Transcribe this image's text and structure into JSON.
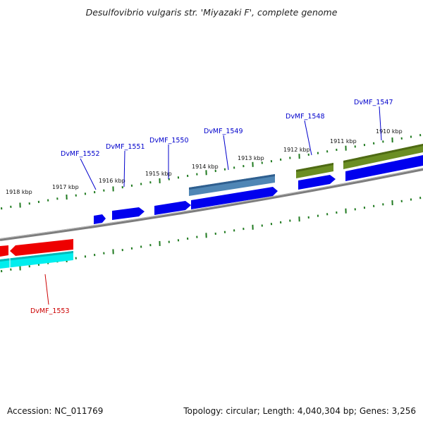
{
  "title": "Desulfovibrio vulgaris str. 'Miyazaki F', complete genome",
  "footer": {
    "accession": "Accession: NC_011769",
    "topology": "Topology: circular; Length: 4,040,304 bp; Genes: 3,256"
  },
  "colors": {
    "background": "#ffffff",
    "backbone": "#8a8a8a",
    "ticks": "#1f7a1f",
    "cds": "#0000ee",
    "gene_label": "#0000cc",
    "highlight_label": "#cc0000",
    "rna_steel": "#4f86b5",
    "olive": "#6b8e23",
    "red": "#ee0000",
    "cyan": "#00eeee"
  },
  "ticks": [
    {
      "label": "1918 kbp"
    },
    {
      "label": "1917 kbp"
    },
    {
      "label": "1916 kbp"
    },
    {
      "label": "1915 kbp"
    },
    {
      "label": "1914 kbp"
    },
    {
      "label": "1913 kbp"
    },
    {
      "label": "1912 kbp"
    },
    {
      "label": "1911 kbp"
    },
    {
      "label": "1910 kbp"
    }
  ],
  "genes": [
    {
      "name": "DvMF_1553",
      "color": "#cc0000"
    },
    {
      "name": "DvMF_1552",
      "color": "#0000cc"
    },
    {
      "name": "DvMF_1551",
      "color": "#0000cc"
    },
    {
      "name": "DvMF_1550",
      "color": "#0000cc"
    },
    {
      "name": "DvMF_1549",
      "color": "#0000cc"
    },
    {
      "name": "DvMF_1548",
      "color": "#0000cc"
    },
    {
      "name": "DvMF_1547",
      "color": "#0000cc"
    }
  ]
}
